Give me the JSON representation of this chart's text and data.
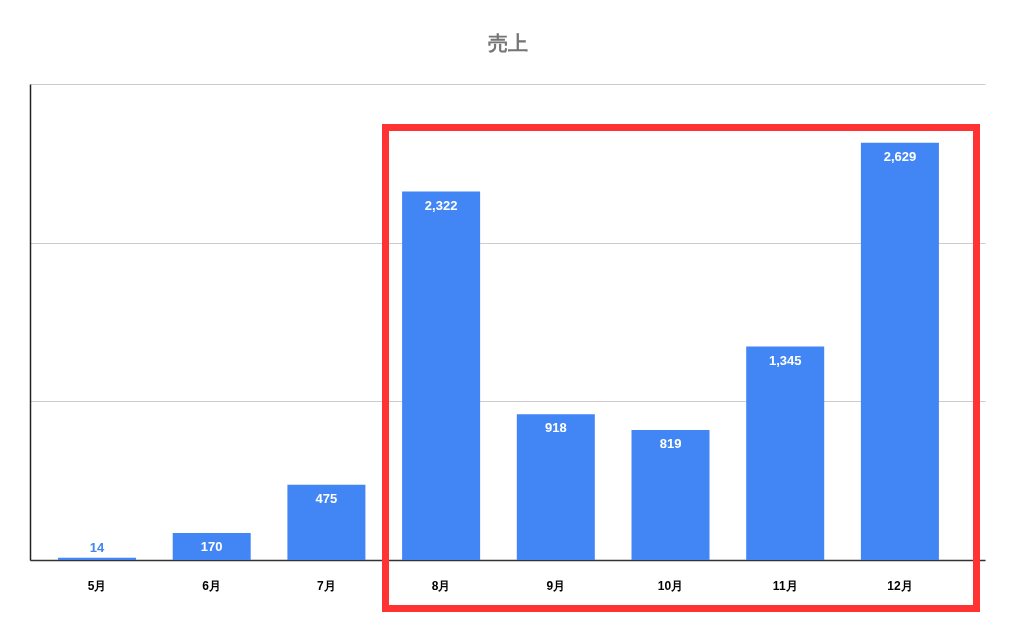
{
  "chart_data": {
    "type": "bar",
    "title": "売上",
    "categories": [
      "5月",
      "6月",
      "7月",
      "8月",
      "9月",
      "10月",
      "11月",
      "12月"
    ],
    "values": [
      14,
      170,
      475,
      2322,
      918,
      819,
      1345,
      2629
    ],
    "value_labels": [
      "14",
      "170",
      "475",
      "2,322",
      "918",
      "819",
      "1,345",
      "2,629"
    ],
    "color": "#4285f4",
    "ylim": [
      0,
      3000
    ],
    "yticks": [
      {
        "value": 0,
        "label": null
      },
      {
        "value": 1000,
        "label": null
      },
      {
        "value": 2000,
        "label": null
      },
      {
        "value": 3000,
        "label": null
      }
    ],
    "grid": "y",
    "tick_labels": "x"
  }
}
